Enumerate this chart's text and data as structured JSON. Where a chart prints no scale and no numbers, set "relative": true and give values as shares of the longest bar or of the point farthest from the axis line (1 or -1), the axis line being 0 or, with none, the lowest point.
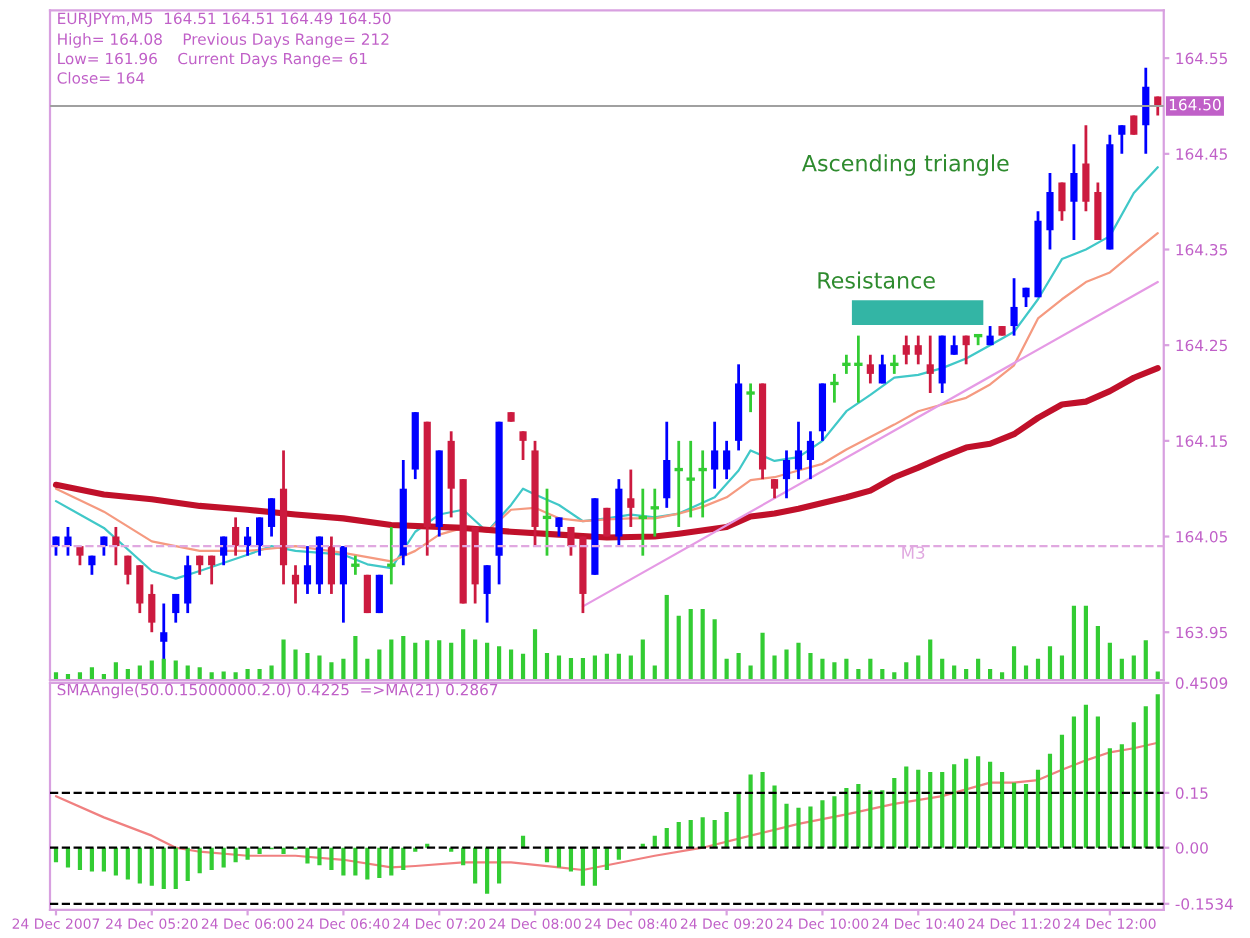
{
  "chart_data": [
    {
      "type": "candlestick",
      "title": "EURJPYm,M5  164.51 164.51 164.49 164.50",
      "annotations": [
        "High= 164.08    Previous Days Range= 212",
        "Low= 161.96    Current Days Range= 61",
        "Close= 164",
        "Resistance",
        "Ascending triangle"
      ],
      "ohlc": [
        [
          164.04,
          164.05,
          164.03,
          164.05
        ],
        [
          164.04,
          164.06,
          164.03,
          164.05
        ],
        [
          164.04,
          164.04,
          164.02,
          164.03
        ],
        [
          164.02,
          164.03,
          164.01,
          164.03
        ],
        [
          164.04,
          164.05,
          164.03,
          164.05
        ],
        [
          164.05,
          164.06,
          164.02,
          164.04
        ],
        [
          164.03,
          164.03,
          164.0,
          164.01
        ],
        [
          164.02,
          164.02,
          163.97,
          163.98
        ],
        [
          163.99,
          164.0,
          163.95,
          163.96
        ],
        [
          163.94,
          163.98,
          163.92,
          163.95
        ],
        [
          163.97,
          163.99,
          163.96,
          163.99
        ],
        [
          163.98,
          164.03,
          163.97,
          164.02
        ],
        [
          164.03,
          164.03,
          164.01,
          164.02
        ],
        [
          164.03,
          164.03,
          164.0,
          164.02
        ],
        [
          164.03,
          164.05,
          164.02,
          164.05
        ],
        [
          164.06,
          164.07,
          164.03,
          164.04
        ],
        [
          164.04,
          164.06,
          164.03,
          164.05
        ],
        [
          164.04,
          164.07,
          164.03,
          164.07
        ],
        [
          164.06,
          164.09,
          164.05,
          164.09
        ],
        [
          164.1,
          164.14,
          164.0,
          164.02
        ],
        [
          164.01,
          164.02,
          163.98,
          164.0
        ],
        [
          164.0,
          164.04,
          163.99,
          164.02
        ],
        [
          164.0,
          164.05,
          163.99,
          164.05
        ],
        [
          164.04,
          164.05,
          163.99,
          164.0
        ],
        [
          164.0,
          164.04,
          163.96,
          164.04
        ],
        [
          164.02,
          164.03,
          164.01,
          164.02
        ],
        [
          164.01,
          164.01,
          163.97,
          163.97
        ],
        [
          163.97,
          164.01,
          163.97,
          164.01
        ],
        [
          164.02,
          164.06,
          164.0,
          164.02
        ],
        [
          164.03,
          164.13,
          164.02,
          164.1
        ],
        [
          164.12,
          164.18,
          164.11,
          164.18
        ],
        [
          164.17,
          164.17,
          164.03,
          164.06
        ],
        [
          164.06,
          164.14,
          164.05,
          164.14
        ],
        [
          164.15,
          164.16,
          164.07,
          164.1
        ],
        [
          164.11,
          164.11,
          163.98,
          163.98
        ],
        [
          164.06,
          164.06,
          163.98,
          164.0
        ],
        [
          163.99,
          164.02,
          163.96,
          164.02
        ],
        [
          164.03,
          164.17,
          164.0,
          164.17
        ],
        [
          164.18,
          164.18,
          164.17,
          164.17
        ],
        [
          164.16,
          164.16,
          164.13,
          164.15
        ],
        [
          164.14,
          164.15,
          164.04,
          164.06
        ],
        [
          164.07,
          164.1,
          164.03,
          164.07
        ],
        [
          164.06,
          164.07,
          164.05,
          164.07
        ],
        [
          164.06,
          164.06,
          164.03,
          164.04
        ],
        [
          164.05,
          164.05,
          163.97,
          163.99
        ],
        [
          164.01,
          164.09,
          164.01,
          164.09
        ],
        [
          164.08,
          164.08,
          164.05,
          164.05
        ],
        [
          164.05,
          164.11,
          164.04,
          164.1
        ],
        [
          164.09,
          164.12,
          164.06,
          164.08
        ],
        [
          164.07,
          164.1,
          164.03,
          164.07
        ],
        [
          164.08,
          164.1,
          164.05,
          164.08
        ],
        [
          164.09,
          164.17,
          164.08,
          164.13
        ],
        [
          164.12,
          164.15,
          164.06,
          164.12
        ],
        [
          164.11,
          164.15,
          164.07,
          164.11
        ],
        [
          164.12,
          164.14,
          164.07,
          164.12
        ],
        [
          164.12,
          164.17,
          164.1,
          164.14
        ],
        [
          164.12,
          164.15,
          164.11,
          164.14
        ],
        [
          164.15,
          164.23,
          164.14,
          164.21
        ],
        [
          164.2,
          164.21,
          164.18,
          164.2
        ],
        [
          164.21,
          164.21,
          164.11,
          164.12
        ],
        [
          164.11,
          164.11,
          164.09,
          164.1
        ],
        [
          164.11,
          164.14,
          164.09,
          164.13
        ],
        [
          164.12,
          164.17,
          164.11,
          164.14
        ],
        [
          164.13,
          164.16,
          164.11,
          164.15
        ],
        [
          164.16,
          164.21,
          164.15,
          164.21
        ],
        [
          164.21,
          164.22,
          164.19,
          164.21
        ],
        [
          164.23,
          164.24,
          164.22,
          164.23
        ],
        [
          164.23,
          164.26,
          164.19,
          164.23
        ],
        [
          164.23,
          164.24,
          164.21,
          164.22
        ],
        [
          164.21,
          164.24,
          164.21,
          164.23
        ],
        [
          164.23,
          164.24,
          164.22,
          164.23
        ],
        [
          164.25,
          164.26,
          164.23,
          164.24
        ],
        [
          164.25,
          164.26,
          164.23,
          164.24
        ],
        [
          164.23,
          164.26,
          164.2,
          164.22
        ],
        [
          164.21,
          164.26,
          164.2,
          164.26
        ],
        [
          164.24,
          164.26,
          164.24,
          164.25
        ],
        [
          164.26,
          164.26,
          164.23,
          164.25
        ],
        [
          164.26,
          164.26,
          164.25,
          164.26
        ],
        [
          164.25,
          164.27,
          164.25,
          164.26
        ],
        [
          164.27,
          164.27,
          164.26,
          164.26
        ],
        [
          164.27,
          164.32,
          164.26,
          164.29
        ],
        [
          164.3,
          164.31,
          164.29,
          164.31
        ],
        [
          164.3,
          164.39,
          164.3,
          164.38
        ],
        [
          164.37,
          164.43,
          164.35,
          164.41
        ],
        [
          164.42,
          164.42,
          164.38,
          164.39
        ],
        [
          164.4,
          164.46,
          164.36,
          164.43
        ],
        [
          164.44,
          164.48,
          164.39,
          164.4
        ],
        [
          164.41,
          164.42,
          164.36,
          164.36
        ],
        [
          164.35,
          164.47,
          164.35,
          164.46
        ],
        [
          164.47,
          164.48,
          164.45,
          164.48
        ],
        [
          164.49,
          164.49,
          164.47,
          164.47
        ],
        [
          164.48,
          164.54,
          164.45,
          164.52
        ],
        [
          164.51,
          164.51,
          164.49,
          164.5
        ]
      ],
      "colors": [
        "#0000ff",
        "#0000ff",
        "#cc1a3f",
        "#0000ff",
        "#0000ff",
        "#cc1a3f",
        "#cc1a3f",
        "#cc1a3f",
        "#cc1a3f",
        "#0000ff",
        "#0000ff",
        "#0000ff",
        "#cc1a3f",
        "#cc1a3f",
        "#0000ff",
        "#cc1a3f",
        "#0000ff",
        "#0000ff",
        "#0000ff",
        "#cc1a3f",
        "#cc1a3f",
        "#0000ff",
        "#0000ff",
        "#cc1a3f",
        "#0000ff",
        "#33cc33",
        "#cc1a3f",
        "#0000ff",
        "#33cc33",
        "#0000ff",
        "#0000ff",
        "#cc1a3f",
        "#0000ff",
        "#cc1a3f",
        "#cc1a3f",
        "#cc1a3f",
        "#0000ff",
        "#0000ff",
        "#cc1a3f",
        "#cc1a3f",
        "#cc1a3f",
        "#33cc33",
        "#0000ff",
        "#cc1a3f",
        "#cc1a3f",
        "#0000ff",
        "#cc1a3f",
        "#0000ff",
        "#cc1a3f",
        "#33cc33",
        "#33cc33",
        "#0000ff",
        "#33cc33",
        "#33cc33",
        "#33cc33",
        "#0000ff",
        "#0000ff",
        "#0000ff",
        "#33cc33",
        "#cc1a3f",
        "#cc1a3f",
        "#0000ff",
        "#0000ff",
        "#0000ff",
        "#0000ff",
        "#33cc33",
        "#33cc33",
        "#33cc33",
        "#cc1a3f",
        "#0000ff",
        "#33cc33",
        "#cc1a3f",
        "#cc1a3f",
        "#cc1a3f",
        "#0000ff",
        "#0000ff",
        "#cc1a3f",
        "#33cc33",
        "#0000ff",
        "#cc1a3f",
        "#0000ff",
        "#0000ff",
        "#0000ff",
        "#0000ff",
        "#cc1a3f",
        "#0000ff",
        "#cc1a3f",
        "#cc1a3f",
        "#0000ff",
        "#0000ff",
        "#cc1a3f",
        "#0000ff",
        "#cc1a3f"
      ],
      "series": [
        {
          "type": "line",
          "color": "#40c8c8",
          "values": [
            164.087,
            null,
            null,
            null,
            164.059,
            null,
            null,
            null,
            164.014,
            null,
            164.006,
            null,
            164.014,
            null,
            null,
            null,
            164.031,
            null,
            164.04,
            null,
            164.035,
            null,
            null,
            null,
            164.031,
            null,
            164.021,
            null,
            164.017,
            null,
            164.055,
            null,
            164.073,
            null,
            164.078,
            null,
            164.055,
            null,
            164.083,
            164.1,
            164.094,
            null,
            164.083,
            null,
            164.066,
            null,
            164.069,
            null,
            164.073,
            null,
            164.07,
            null,
            164.074,
            null,
            null,
            164.091,
            null,
            164.119,
            164.14,
            null,
            164.129,
            null,
            164.133,
            null,
            164.15,
            null,
            164.181,
            null,
            164.198,
            null,
            164.216,
            null,
            164.219,
            null,
            164.226,
            null,
            164.236,
            null,
            164.25,
            null,
            164.264,
            null,
            164.298,
            null,
            164.34,
            null,
            164.35,
            null,
            164.364,
            null,
            164.409,
            null,
            164.436
          ]
        },
        {
          "type": "line",
          "color": "#f59a80",
          "values": [
            164.1,
            null,
            null,
            null,
            164.076,
            null,
            null,
            null,
            164.045,
            null,
            null,
            null,
            164.035,
            null,
            null,
            null,
            164.035,
            null,
            null,
            null,
            164.04,
            null,
            null,
            null,
            164.033,
            null,
            null,
            null,
            164.024,
            null,
            164.035,
            null,
            164.052,
            null,
            164.059,
            null,
            164.055,
            null,
            164.078,
            null,
            164.08,
            null,
            164.069,
            null,
            164.066,
            null,
            164.068,
            null,
            164.069,
            null,
            164.069,
            null,
            164.074,
            null,
            164.081,
            null,
            164.091,
            null,
            164.109,
            null,
            164.112,
            null,
            164.119,
            null,
            164.126,
            null,
            164.141,
            null,
            164.154,
            null,
            164.167,
            null,
            164.181,
            null,
            164.188,
            null,
            164.195,
            null,
            164.209,
            null,
            164.229,
            null,
            164.278,
            null,
            164.298,
            null,
            164.316,
            null,
            164.326,
            null,
            164.347,
            null,
            164.367
          ]
        },
        {
          "type": "line",
          "color": "#c0102a",
          "values": [
            164.104,
            null,
            null,
            null,
            164.094,
            null,
            null,
            null,
            164.089,
            null,
            null,
            null,
            164.082,
            null,
            null,
            null,
            164.078,
            null,
            null,
            null,
            164.073,
            null,
            null,
            null,
            164.069,
            null,
            null,
            null,
            164.062,
            null,
            null,
            null,
            null,
            null,
            164.059,
            null,
            null,
            null,
            164.055,
            null,
            null,
            null,
            164.052,
            null,
            null,
            null,
            164.049,
            null,
            null,
            null,
            164.05,
            null,
            164.053,
            null,
            null,
            null,
            164.06,
            null,
            164.071,
            null,
            164.074,
            null,
            164.079,
            null,
            164.085,
            null,
            164.091,
            null,
            164.098,
            null,
            164.112,
            null,
            164.122,
            null,
            164.133,
            null,
            164.143,
            null,
            164.147,
            null,
            164.157,
            null,
            164.174,
            null,
            164.188,
            null,
            164.191,
            null,
            164.202,
            null,
            164.216,
            null,
            164.226
          ]
        },
        {
          "type": "line",
          "color": "#e59ae5",
          "values": [
            null,
            null,
            null,
            null,
            null,
            null,
            null,
            null,
            null,
            null,
            null,
            null,
            null,
            null,
            null,
            null,
            null,
            null,
            null,
            null,
            null,
            null,
            null,
            null,
            null,
            null,
            null,
            null,
            null,
            null,
            null,
            null,
            null,
            null,
            null,
            null,
            null,
            null,
            null,
            null,
            null,
            null,
            null,
            null,
            163.977,
            null,
            null,
            null,
            null,
            null,
            null,
            null,
            null,
            null,
            null,
            null,
            null,
            null,
            null,
            null,
            null,
            null,
            null,
            null,
            null,
            null,
            null,
            null,
            null,
            null,
            null,
            null,
            null,
            null,
            null,
            null,
            null,
            null,
            null,
            null,
            null,
            null,
            null,
            null,
            null,
            null,
            null,
            null,
            null,
            null,
            null,
            null,
            164.316
          ]
        }
      ],
      "ylim": [
        163.9,
        164.6
      ],
      "yticks": [
        163.95,
        164.05,
        164.15,
        164.25,
        164.35,
        164.45,
        164.55
      ],
      "ref_lines": [
        {
          "axis": "y",
          "value": 164.5,
          "label": "164.50",
          "color": "#a0a0a0",
          "line_style": "solid"
        },
        {
          "axis": "y",
          "value": 164.04,
          "label": "M3",
          "color": "#e0a8e0",
          "line_style": "dashed"
        }
      ],
      "tick_labels": "y"
    },
    {
      "type": "bar",
      "relative": true,
      "color": "#33cc33",
      "tick_labels": false,
      "categories": [
        null,
        null,
        null,
        null,
        null,
        null,
        null,
        null,
        null,
        null,
        null,
        null,
        null,
        null,
        null,
        null,
        null,
        null,
        null,
        null,
        null,
        null,
        null,
        null,
        null,
        null,
        null,
        null,
        null,
        null,
        null,
        null,
        null,
        null,
        null,
        null,
        null,
        null,
        null,
        null,
        null,
        null,
        null,
        null,
        null,
        null,
        null,
        null,
        null,
        null,
        null,
        null,
        null,
        null,
        null,
        null,
        null,
        null,
        null,
        null,
        null,
        null,
        null,
        null,
        null,
        null,
        null,
        null,
        null,
        null,
        null,
        null,
        null,
        null,
        null,
        null,
        null,
        null,
        null,
        null,
        null,
        null,
        null,
        null,
        null,
        null,
        null,
        null,
        null,
        null,
        null,
        null,
        null
      ],
      "values": [
        0.08,
        0.06,
        0.08,
        0.14,
        0.06,
        0.2,
        0.12,
        0.16,
        0.22,
        0.24,
        0.22,
        0.16,
        0.14,
        0.08,
        0.09,
        0.08,
        0.12,
        0.12,
        0.16,
        0.47,
        0.35,
        0.31,
        0.28,
        0.2,
        0.24,
        0.51,
        0.24,
        0.35,
        0.47,
        0.51,
        0.43,
        0.46,
        0.46,
        0.43,
        0.59,
        0.47,
        0.43,
        0.39,
        0.35,
        0.3,
        0.59,
        0.31,
        0.28,
        0.25,
        0.25,
        0.28,
        0.3,
        0.3,
        0.28,
        0.47,
        0.16,
        1,
        0.75,
        0.83,
        0.83,
        0.71,
        0.24,
        0.31,
        0.16,
        0.55,
        0.28,
        0.35,
        0.43,
        0.31,
        0.24,
        0.2,
        0.24,
        0.12,
        0.24,
        0.12,
        0.08,
        0.2,
        0.28,
        0.47,
        0.24,
        0.16,
        0.12,
        0.24,
        0.12,
        0.08,
        0.39,
        0.16,
        0.24,
        0.39,
        0.28,
        0.87,
        0.87,
        0.63,
        0.43,
        0.24,
        0.28,
        0.46,
        0.09
      ]
    },
    {
      "type": "bar",
      "title": "SMAAngle(50.0.15000000.2.0) 0.4225  =>MA(21) 0.2867",
      "color": "#33cc33",
      "categories": [
        "24 Dec 2007",
        null,
        null,
        null,
        null,
        null,
        null,
        null,
        "24 Dec 05:20",
        null,
        null,
        null,
        null,
        null,
        null,
        null,
        "24 Dec 06:00",
        null,
        null,
        null,
        null,
        null,
        null,
        null,
        "24 Dec 06:40",
        null,
        null,
        null,
        null,
        null,
        null,
        null,
        "24 Dec 07:20",
        null,
        null,
        null,
        null,
        null,
        null,
        null,
        "24 Dec 08:00",
        null,
        null,
        null,
        null,
        null,
        null,
        null,
        "24 Dec 08:40",
        null,
        null,
        null,
        null,
        null,
        null,
        null,
        "24 Dec 09:20",
        null,
        null,
        null,
        null,
        null,
        null,
        null,
        "24 Dec 10:00",
        null,
        null,
        null,
        null,
        null,
        null,
        null,
        "24 Dec 10:40",
        null,
        null,
        null,
        null,
        null,
        null,
        null,
        "24 Dec 11:20",
        null,
        null,
        null,
        null,
        null,
        null,
        null,
        "24 Dec 12:00",
        null,
        null,
        null,
        null
      ],
      "values": [
        -0.04,
        -0.054,
        -0.061,
        -0.065,
        -0.065,
        -0.076,
        -0.087,
        -0.098,
        -0.104,
        -0.113,
        -0.113,
        -0.091,
        -0.07,
        -0.061,
        -0.054,
        -0.04,
        -0.033,
        -0.017,
        -0.004,
        -0.017,
        -0.005,
        -0.043,
        -0.048,
        -0.061,
        -0.076,
        -0.076,
        -0.087,
        -0.083,
        -0.076,
        -0.061,
        -0.011,
        0.011,
        null,
        -0.011,
        -0.048,
        -0.098,
        -0.126,
        -0.098,
        null,
        0.033,
        null,
        -0.04,
        -0.054,
        -0.065,
        -0.104,
        -0.104,
        -0.061,
        -0.033,
        null,
        0.011,
        0.033,
        0.054,
        0.07,
        0.076,
        0.083,
        0.076,
        0.098,
        0.152,
        0.2,
        0.207,
        0.17,
        0.12,
        0.109,
        0.113,
        0.13,
        0.141,
        0.163,
        0.174,
        0.157,
        0.157,
        0.191,
        0.222,
        0.213,
        0.207,
        0.207,
        0.228,
        0.243,
        0.25,
        0.235,
        0.207,
        0.178,
        0.174,
        0.213,
        0.257,
        0.309,
        0.359,
        0.391,
        0.359,
        0.272,
        0.283,
        0.343,
        0.387,
        0.42
      ],
      "series": [
        {
          "type": "line",
          "color": "#f08080",
          "values": [
            0.141,
            null,
            null,
            null,
            0.083,
            null,
            null,
            null,
            0.033,
            null,
            0.0,
            null,
            -0.011,
            null,
            null,
            null,
            -0.022,
            null,
            null,
            null,
            -0.022,
            null,
            null,
            null,
            -0.033,
            null,
            null,
            null,
            -0.054,
            null,
            -0.05,
            null,
            null,
            null,
            -0.04,
            null,
            null,
            null,
            -0.04,
            null,
            null,
            null,
            -0.054,
            null,
            -0.061,
            null,
            -0.048,
            null,
            null,
            null,
            -0.022,
            null,
            null,
            null,
            0.0,
            null,
            null,
            null,
            0.033,
            null,
            null,
            null,
            0.065,
            null,
            null,
            null,
            0.091,
            null,
            null,
            null,
            0.12,
            null,
            null,
            null,
            0.141,
            null,
            null,
            null,
            0.178,
            null,
            0.178,
            null,
            0.185,
            null,
            0.213,
            null,
            0.239,
            null,
            0.261,
            null,
            0.272,
            null,
            0.287
          ]
        }
      ],
      "ylim": [
        -0.17,
        0.4509
      ],
      "yticks": [
        0.4509,
        0.15,
        {
          "value": 0,
          "label": "0.00"
        },
        {
          "value": -0.1534,
          "label": "-0.1534"
        }
      ],
      "ref_lines": [
        {
          "axis": "y",
          "value": 0.15,
          "color": "#000000",
          "line_style": "dashed"
        },
        {
          "axis": "y",
          "value": 0,
          "color": "#000000",
          "line_style": "dashed"
        },
        {
          "axis": "y",
          "value": -0.1534,
          "color": "#000000",
          "line_style": "dashed"
        }
      ]
    }
  ]
}
